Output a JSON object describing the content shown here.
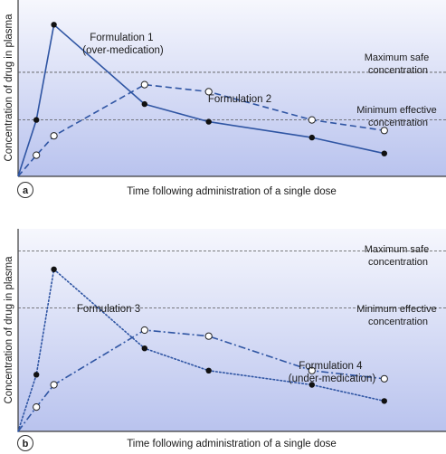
{
  "colors": {
    "panel_top": "#f6f7fd",
    "panel_bottom": "#b9c3ee",
    "axis": "#3a3a3a",
    "threshold": "#555555",
    "series": "#2f55a3",
    "open_fill": "#ffffff",
    "closed_fill": "#111111"
  },
  "chart_data": [
    {
      "type": "line",
      "panel": "a",
      "xlabel": "Time following administration of a single dose",
      "ylabel": "Concentration of drug in plasma",
      "xlim": [
        0,
        100
      ],
      "ylim": [
        0,
        100
      ],
      "grid": false,
      "thresholds": [
        {
          "name": "max_safe",
          "label": "Maximum safe\nconcentration",
          "value": 59
        },
        {
          "name": "min_effective",
          "label": "Minimum effective\nconcentration",
          "value": 32
        }
      ],
      "series": [
        {
          "name": "Formulation 1\n(over-medication)",
          "dash": "solid",
          "marker": "filled",
          "x": [
            0,
            4.4,
            8.6,
            30.4,
            45.8,
            70.6,
            88
          ],
          "y": [
            0,
            32,
            86,
            41,
            31,
            22,
            13
          ]
        },
        {
          "name": "Formulation 2",
          "dash": "dashed",
          "marker": "open",
          "x": [
            0,
            4.4,
            8.6,
            30.4,
            45.8,
            70.6,
            88
          ],
          "y": [
            0,
            12,
            23,
            52,
            48,
            32,
            26
          ]
        }
      ]
    },
    {
      "type": "line",
      "panel": "b",
      "xlabel": "Time following administration of a single dose",
      "ylabel": "Concentration of drug in plasma",
      "xlim": [
        0,
        100
      ],
      "ylim": [
        0,
        100
      ],
      "grid": false,
      "thresholds": [
        {
          "name": "max_safe",
          "label": "Maximum safe\nconcentration",
          "value": 89
        },
        {
          "name": "min_effective",
          "label": "Minimum effective\nconcentration",
          "value": 61
        }
      ],
      "series": [
        {
          "name": "Formulation 3",
          "dash": "dotted",
          "marker": "filled",
          "x": [
            0,
            4.4,
            8.6,
            30.4,
            45.8,
            70.6,
            88
          ],
          "y": [
            0,
            28,
            80,
            41,
            30,
            23,
            15
          ]
        },
        {
          "name": "Formulation 4\n(under-medication)",
          "dash": "dashdot",
          "marker": "open",
          "x": [
            0,
            4.4,
            8.6,
            30.4,
            45.8,
            70.6,
            88
          ],
          "y": [
            0,
            12,
            23,
            50,
            47,
            30,
            26
          ]
        }
      ]
    }
  ]
}
